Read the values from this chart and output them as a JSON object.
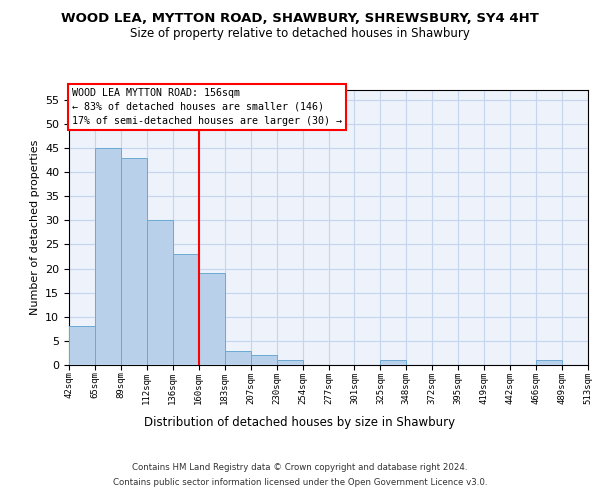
{
  "title": "WOOD LEA, MYTTON ROAD, SHAWBURY, SHREWSBURY, SY4 4HT",
  "subtitle": "Size of property relative to detached houses in Shawbury",
  "xlabel": "Distribution of detached houses by size in Shawbury",
  "ylabel": "Number of detached properties",
  "bar_values": [
    8,
    45,
    43,
    30,
    23,
    19,
    3,
    2,
    1,
    0,
    0,
    0,
    1,
    0,
    0,
    0,
    0,
    0,
    1,
    0
  ],
  "categories": [
    "42sqm",
    "65sqm",
    "89sqm",
    "112sqm",
    "136sqm",
    "160sqm",
    "183sqm",
    "207sqm",
    "230sqm",
    "254sqm",
    "277sqm",
    "301sqm",
    "325sqm",
    "348sqm",
    "372sqm",
    "395sqm",
    "419sqm",
    "442sqm",
    "466sqm",
    "489sqm",
    "513sqm"
  ],
  "bar_color": "#b8d0ea",
  "bar_edge_color": "#6aaad4",
  "red_line_x": 5,
  "ylim_max": 57,
  "yticks": [
    0,
    5,
    10,
    15,
    20,
    25,
    30,
    35,
    40,
    45,
    50,
    55
  ],
  "annotation_title": "WOOD LEA MYTTON ROAD: 156sqm",
  "annotation_line1": "← 83% of detached houses are smaller (146)",
  "annotation_line2": "17% of semi-detached houses are larger (30) →",
  "footer_line1": "Contains HM Land Registry data © Crown copyright and database right 2024.",
  "footer_line2": "Contains public sector information licensed under the Open Government Licence v3.0.",
  "bg_color": "#edf2fb",
  "grid_color": "#c5d5ee"
}
